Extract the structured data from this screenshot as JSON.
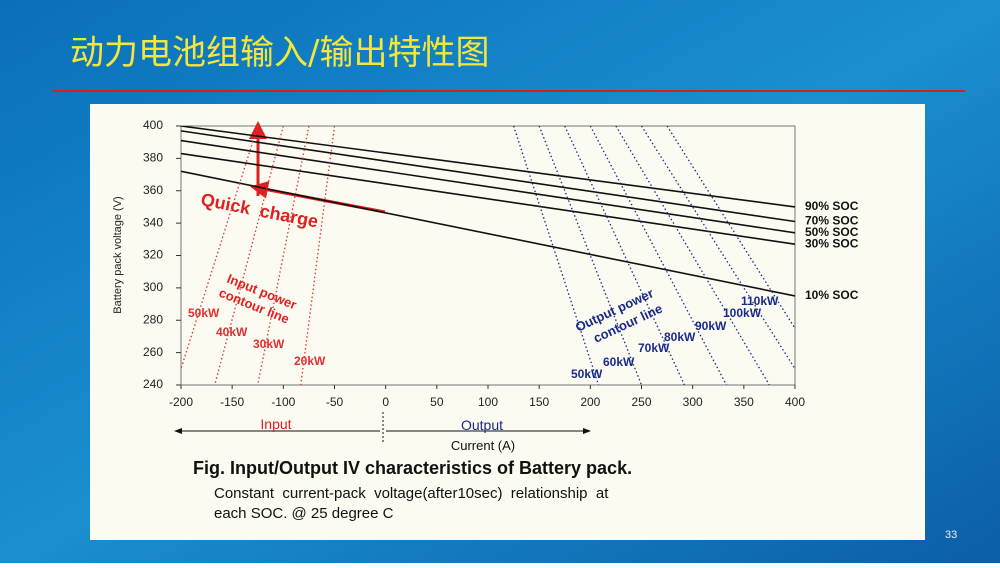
{
  "slide": {
    "title": "动力电池组输入/输出特性图",
    "page_number": "33"
  },
  "chart_data": {
    "type": "line",
    "caption": "Fig. Input/Output IV characteristics of Battery pack.",
    "note_lines": [
      "Constant  current-pack  voltage(after10sec)  relationship  at",
      "each SOC. @ 25 degree C"
    ],
    "x_label": "Current (A)",
    "y_label": "Battery pack voltage (V)",
    "annotations": [
      "Quick  charge",
      "Input power",
      "contour line",
      "Output power",
      "contour line",
      "Input",
      "Output"
    ],
    "xlim": [
      -200,
      400
    ],
    "xticks": [
      -200,
      -150,
      -100,
      -50,
      0,
      50,
      100,
      150,
      200,
      250,
      300,
      350,
      400
    ],
    "ylim": [
      240,
      400
    ],
    "yticks": [
      240,
      260,
      280,
      300,
      320,
      340,
      360,
      380,
      400
    ],
    "x": [
      -200,
      400
    ],
    "series": [
      {
        "name": "90% SOC",
        "color": "#111111",
        "style": "solid",
        "values": [
          400,
          350
        ]
      },
      {
        "name": "70% SOC",
        "color": "#111111",
        "style": "solid",
        "values": [
          397,
          341
        ]
      },
      {
        "name": "50% SOC",
        "color": "#111111",
        "style": "solid",
        "values": [
          391,
          334
        ]
      },
      {
        "name": "30% SOC",
        "color": "#111111",
        "style": "solid",
        "values": [
          383,
          327
        ]
      },
      {
        "name": "10% SOC",
        "color": "#111111",
        "style": "solid",
        "values": [
          372,
          295
        ]
      },
      {
        "name": "50kW",
        "color": "#e03030",
        "style": "dotted",
        "x": [
          -125,
          -200
        ],
        "values": [
          400,
          250
        ]
      },
      {
        "name": "40kW",
        "color": "#e03030",
        "style": "dotted",
        "x": [
          -100,
          -167
        ],
        "values": [
          400,
          240
        ]
      },
      {
        "name": "30kW",
        "color": "#e03030",
        "style": "dotted",
        "x": [
          -75,
          -125
        ],
        "values": [
          400,
          240
        ]
      },
      {
        "name": "20kW",
        "color": "#e03030",
        "style": "dotted",
        "x": [
          -50,
          -83
        ],
        "values": [
          400,
          240
        ]
      },
      {
        "name": "50kW",
        "color": "#1a2a8a",
        "style": "dotted",
        "x": [
          125,
          208
        ],
        "values": [
          400,
          240
        ]
      },
      {
        "name": "60kW",
        "color": "#1a2a8a",
        "style": "dotted",
        "x": [
          150,
          250
        ],
        "values": [
          400,
          240
        ]
      },
      {
        "name": "70kW",
        "color": "#1a2a8a",
        "style": "dotted",
        "x": [
          175,
          292
        ],
        "values": [
          400,
          240
        ]
      },
      {
        "name": "80kW",
        "color": "#1a2a8a",
        "style": "dotted",
        "x": [
          200,
          333
        ],
        "values": [
          400,
          240
        ]
      },
      {
        "name": "90kW",
        "color": "#1a2a8a",
        "style": "dotted",
        "x": [
          225,
          375
        ],
        "values": [
          400,
          240
        ]
      },
      {
        "name": "100kW",
        "color": "#1a2a8a",
        "style": "dotted",
        "x": [
          250,
          400
        ],
        "values": [
          400,
          250
        ]
      },
      {
        "name": "110kW",
        "color": "#1a2a8a",
        "style": "dotted",
        "x": [
          275,
          400
        ],
        "values": [
          400,
          275
        ]
      }
    ]
  }
}
